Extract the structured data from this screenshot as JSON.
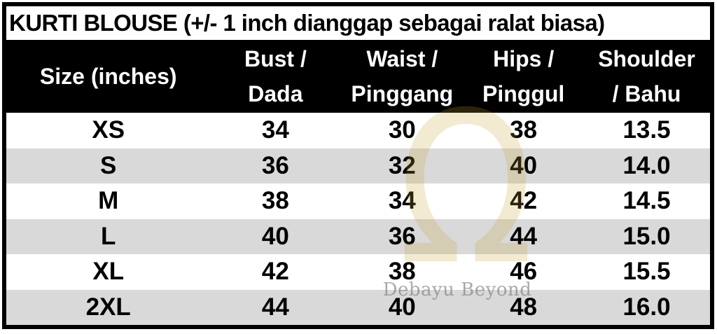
{
  "title": "KURTI BLOUSE (+/- 1 inch dianggap sebagai ralat biasa)",
  "table": {
    "header": {
      "size_label": "Size (inches)",
      "bust_line1": "Bust /",
      "bust_line2": "Dada",
      "waist_line1": "Waist /",
      "waist_line2": "Pinggang",
      "hips_line1": "Hips /",
      "hips_line2": "Pinggul",
      "shoulder_line1": "Shoulder",
      "shoulder_line2": "/ Bahu"
    },
    "rows": [
      {
        "size": "XS",
        "bust": "34",
        "waist": "30",
        "hips": "38",
        "shoulder": "13.5"
      },
      {
        "size": "S",
        "bust": "36",
        "waist": "32",
        "hips": "40",
        "shoulder": "14.0"
      },
      {
        "size": "M",
        "bust": "38",
        "waist": "34",
        "hips": "42",
        "shoulder": "14.5"
      },
      {
        "size": "L",
        "bust": "40",
        "waist": "36",
        "hips": "44",
        "shoulder": "15.0"
      },
      {
        "size": "XL",
        "bust": "42",
        "waist": "38",
        "hips": "46",
        "shoulder": "15.5"
      },
      {
        "size": "2XL",
        "bust": "44",
        "waist": "40",
        "hips": "48",
        "shoulder": "16.0"
      }
    ]
  },
  "watermark": {
    "symbol": "Ω",
    "brand": "Debayu Beyond",
    "gold_color": "#C69E2D",
    "brand_text_color": "#7d7d7a"
  },
  "colors": {
    "header_bg": "#000000",
    "header_text": "#ffffff",
    "row_white": "#ffffff",
    "row_gray": "#d9d9d9",
    "border": "#000000",
    "title_text": "#000000"
  },
  "chart_data": {
    "type": "table",
    "title": "KURTI BLOUSE (+/- 1 inch dianggap sebagai ralat biasa)",
    "columns": [
      "Size (inches)",
      "Bust / Dada",
      "Waist / Pinggang",
      "Hips / Pinggul",
      "Shoulder / Bahu"
    ],
    "rows": [
      [
        "XS",
        34,
        30,
        38,
        13.5
      ],
      [
        "S",
        36,
        32,
        40,
        14.0
      ],
      [
        "M",
        38,
        34,
        42,
        14.5
      ],
      [
        "L",
        40,
        36,
        44,
        15.0
      ],
      [
        "XL",
        42,
        38,
        46,
        15.5
      ],
      [
        "2XL",
        44,
        40,
        48,
        16.0
      ]
    ],
    "units": "inches",
    "layout": "title row on top, black header band with bilingual two-line column labels, alternating white/gray body rows, gold omega brand watermark overlay"
  }
}
